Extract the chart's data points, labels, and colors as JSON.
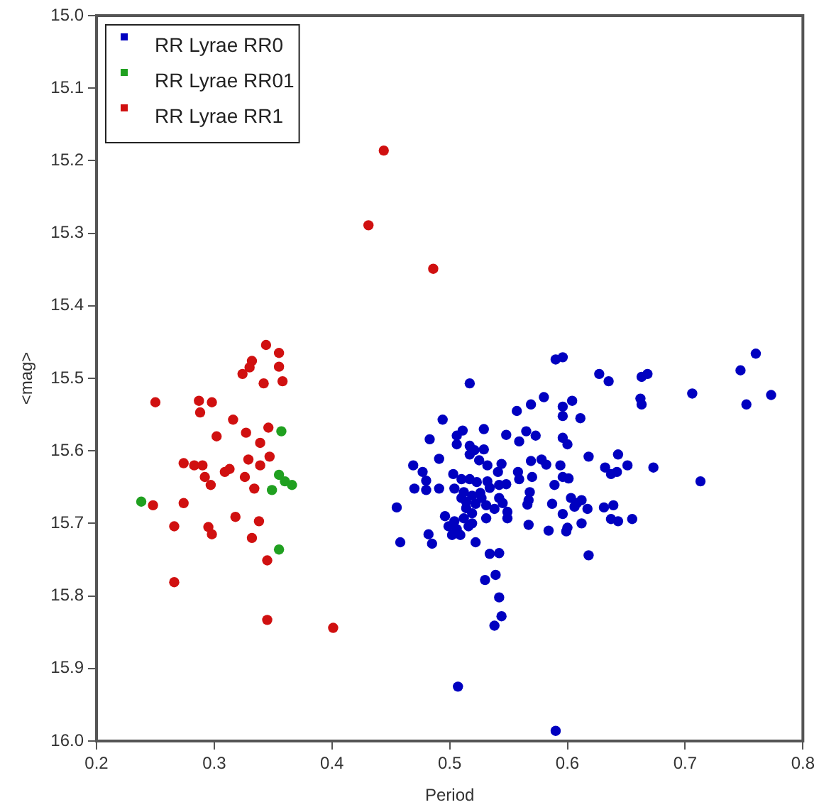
{
  "chart_data": {
    "type": "scatter",
    "xlabel": "Period",
    "ylabel": "<mag>",
    "xlim": [
      0.2,
      0.8
    ],
    "xticks": [
      0.2,
      0.3,
      0.4,
      0.5,
      0.6,
      0.7,
      0.8
    ],
    "ylim": [
      16.0,
      15.0
    ],
    "yticks": [
      {
        "value": 15,
        "label": "15.0"
      },
      {
        "value": 15.1,
        "label": "15.1"
      },
      {
        "value": 15.2,
        "label": "15.2"
      },
      {
        "value": 15.3,
        "label": "15.3"
      },
      {
        "value": 15.4,
        "label": "15.4"
      },
      {
        "value": 15.5,
        "label": "15.5"
      },
      {
        "value": 15.6,
        "label": "15.6"
      },
      {
        "value": 15.7,
        "label": "15.7"
      },
      {
        "value": 15.8,
        "label": "15.8"
      },
      {
        "value": 15.9,
        "label": "15.9"
      },
      {
        "value": 16,
        "label": "16.0"
      }
    ],
    "grid": false,
    "legend": "top left",
    "marker": "circle",
    "series": [
      {
        "name": "RR Lyrae RR0",
        "color": "#0000c0",
        "x": [
          0.59,
          0.596,
          0.517,
          0.627,
          0.635,
          0.663,
          0.668,
          0.662,
          0.663,
          0.706,
          0.747,
          0.76,
          0.752,
          0.773,
          0.58,
          0.569,
          0.557,
          0.596,
          0.604,
          0.596,
          0.611,
          0.494,
          0.511,
          0.529,
          0.548,
          0.565,
          0.573,
          0.559,
          0.596,
          0.6,
          0.483,
          0.506,
          0.506,
          0.517,
          0.521,
          0.517,
          0.529,
          0.525,
          0.532,
          0.541,
          0.544,
          0.491,
          0.469,
          0.477,
          0.569,
          0.578,
          0.582,
          0.594,
          0.618,
          0.643,
          0.651,
          0.632,
          0.637,
          0.642,
          0.673,
          0.713,
          0.48,
          0.503,
          0.47,
          0.48,
          0.491,
          0.504,
          0.51,
          0.517,
          0.523,
          0.532,
          0.512,
          0.519,
          0.526,
          0.534,
          0.542,
          0.548,
          0.558,
          0.559,
          0.57,
          0.589,
          0.596,
          0.601,
          0.568,
          0.567,
          0.566,
          0.587,
          0.603,
          0.608,
          0.612,
          0.617,
          0.606,
          0.631,
          0.639,
          0.637,
          0.643,
          0.655,
          0.596,
          0.612,
          0.6,
          0.599,
          0.584,
          0.567,
          0.618,
          0.455,
          0.458,
          0.482,
          0.485,
          0.496,
          0.499,
          0.502,
          0.504,
          0.506,
          0.509,
          0.512,
          0.514,
          0.516,
          0.519,
          0.519,
          0.522,
          0.51,
          0.514,
          0.527,
          0.531,
          0.531,
          0.522,
          0.538,
          0.542,
          0.545,
          0.549,
          0.549,
          0.534,
          0.542,
          0.539,
          0.53,
          0.542,
          0.544,
          0.538,
          0.507,
          0.59
        ],
        "values": [
          15.474,
          15.471,
          15.507,
          15.494,
          15.504,
          15.498,
          15.494,
          15.528,
          15.536,
          15.521,
          15.489,
          15.466,
          15.536,
          15.523,
          15.526,
          15.536,
          15.545,
          15.539,
          15.531,
          15.552,
          15.555,
          15.557,
          15.572,
          15.57,
          15.578,
          15.573,
          15.579,
          15.587,
          15.582,
          15.591,
          15.584,
          15.579,
          15.591,
          15.593,
          15.599,
          15.605,
          15.598,
          15.613,
          15.62,
          15.629,
          15.618,
          15.611,
          15.62,
          15.629,
          15.614,
          15.612,
          15.619,
          15.62,
          15.608,
          15.605,
          15.62,
          15.623,
          15.632,
          15.629,
          15.623,
          15.642,
          15.641,
          15.632,
          15.652,
          15.654,
          15.652,
          15.652,
          15.639,
          15.639,
          15.643,
          15.642,
          15.657,
          15.662,
          15.658,
          15.651,
          15.647,
          15.646,
          15.629,
          15.639,
          15.636,
          15.647,
          15.636,
          15.638,
          15.657,
          15.668,
          15.674,
          15.673,
          15.665,
          15.672,
          15.668,
          15.68,
          15.677,
          15.678,
          15.675,
          15.694,
          15.697,
          15.694,
          15.687,
          15.7,
          15.706,
          15.711,
          15.71,
          15.702,
          15.744,
          15.678,
          15.726,
          15.715,
          15.728,
          15.69,
          15.704,
          15.716,
          15.697,
          15.708,
          15.716,
          15.693,
          15.679,
          15.704,
          15.7,
          15.686,
          15.673,
          15.665,
          15.67,
          15.665,
          15.675,
          15.693,
          15.726,
          15.68,
          15.665,
          15.672,
          15.684,
          15.693,
          15.742,
          15.741,
          15.771,
          15.778,
          15.802,
          15.828,
          15.841,
          15.925,
          15.986
        ]
      },
      {
        "name": "RR Lyrae RR01",
        "color": "#20a020",
        "x": [
          0.357,
          0.355,
          0.36,
          0.366,
          0.349,
          0.238,
          0.355
        ],
        "values": [
          15.573,
          15.633,
          15.642,
          15.647,
          15.654,
          15.67,
          15.736
        ]
      },
      {
        "name": "RR Lyrae RR1",
        "color": "#d01010",
        "x": [
          0.444,
          0.431,
          0.486,
          0.344,
          0.355,
          0.332,
          0.33,
          0.324,
          0.355,
          0.342,
          0.358,
          0.25,
          0.287,
          0.298,
          0.288,
          0.316,
          0.302,
          0.327,
          0.346,
          0.339,
          0.274,
          0.283,
          0.29,
          0.329,
          0.347,
          0.339,
          0.309,
          0.313,
          0.292,
          0.326,
          0.297,
          0.334,
          0.248,
          0.274,
          0.266,
          0.295,
          0.298,
          0.318,
          0.338,
          0.332,
          0.345,
          0.266,
          0.345,
          0.401
        ],
        "values": [
          15.186,
          15.289,
          15.349,
          15.454,
          15.465,
          15.476,
          15.485,
          15.494,
          15.484,
          15.507,
          15.504,
          15.533,
          15.531,
          15.533,
          15.547,
          15.557,
          15.58,
          15.575,
          15.568,
          15.589,
          15.617,
          15.62,
          15.62,
          15.612,
          15.608,
          15.62,
          15.629,
          15.625,
          15.636,
          15.636,
          15.647,
          15.652,
          15.675,
          15.672,
          15.704,
          15.705,
          15.715,
          15.691,
          15.697,
          15.72,
          15.751,
          15.781,
          15.833,
          15.844
        ]
      }
    ]
  }
}
